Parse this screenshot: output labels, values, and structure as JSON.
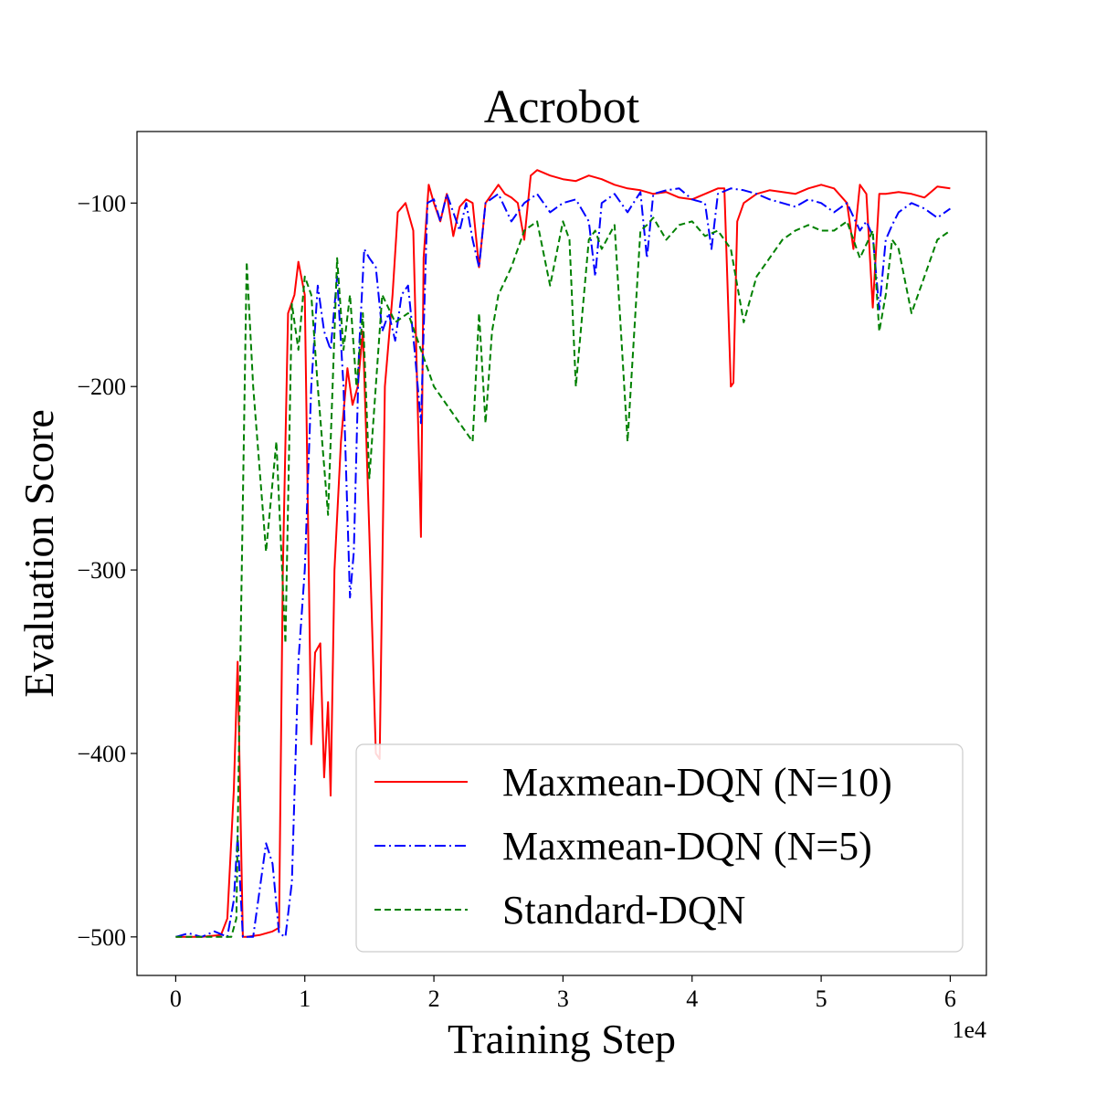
{
  "chart_data": {
    "type": "line",
    "title": "Acrobot",
    "xlabel": "Training Step",
    "ylabel": "Evaluation Score",
    "x_offset_label": "1e4",
    "xlim": [
      -0.3,
      6.28
    ],
    "ylim": [
      -521,
      -61
    ],
    "xticks": [
      0,
      1,
      2,
      3,
      4,
      5,
      6
    ],
    "xtick_labels": [
      "0",
      "1",
      "2",
      "3",
      "4",
      "5",
      "6"
    ],
    "yticks": [
      -500,
      -400,
      -300,
      -200,
      -100
    ],
    "ytick_labels": [
      "−500",
      "−400",
      "−300",
      "−200",
      "−100"
    ],
    "grid": false,
    "legend_position": "lower-right",
    "series": [
      {
        "name": "Maxmean-DQN (N=10)",
        "color": "#ff0000",
        "dash": "solid",
        "x": [
          0,
          0.2,
          0.35,
          0.4,
          0.45,
          0.48,
          0.52,
          0.55,
          0.65,
          0.75,
          0.8,
          0.83,
          0.87,
          0.92,
          0.95,
          1.0,
          1.05,
          1.08,
          1.12,
          1.15,
          1.18,
          1.2,
          1.23,
          1.28,
          1.33,
          1.37,
          1.41,
          1.45,
          1.5,
          1.55,
          1.58,
          1.62,
          1.68,
          1.72,
          1.78,
          1.84,
          1.9,
          1.92,
          1.96,
          2.0,
          2.05,
          2.1,
          2.15,
          2.2,
          2.25,
          2.3,
          2.35,
          2.4,
          2.45,
          2.5,
          2.55,
          2.6,
          2.65,
          2.7,
          2.75,
          2.8,
          2.9,
          3.0,
          3.1,
          3.2,
          3.3,
          3.4,
          3.5,
          3.6,
          3.7,
          3.8,
          3.9,
          4.0,
          4.1,
          4.2,
          4.25,
          4.3,
          4.32,
          4.35,
          4.4,
          4.5,
          4.6,
          4.7,
          4.8,
          4.9,
          5.0,
          5.1,
          5.2,
          5.25,
          5.3,
          5.35,
          5.4,
          5.45,
          5.5,
          5.6,
          5.7,
          5.8,
          5.9,
          6.0
        ],
        "y": [
          -500,
          -500,
          -499,
          -490,
          -420,
          -350,
          -500,
          -500,
          -499,
          -497,
          -495,
          -300,
          -160,
          -150,
          -132,
          -150,
          -395,
          -345,
          -340,
          -413,
          -372,
          -423,
          -300,
          -230,
          -190,
          -210,
          -200,
          -170,
          -280,
          -400,
          -403,
          -200,
          -150,
          -105,
          -100,
          -115,
          -282,
          -130,
          -90,
          -100,
          -110,
          -95,
          -118,
          -102,
          -98,
          -100,
          -135,
          -100,
          -95,
          -90,
          -95,
          -97,
          -100,
          -120,
          -85,
          -82,
          -85,
          -87,
          -88,
          -85,
          -87,
          -90,
          -92,
          -93,
          -95,
          -94,
          -97,
          -98,
          -95,
          -92,
          -92,
          -200,
          -198,
          -110,
          -100,
          -95,
          -93,
          -94,
          -95,
          -92,
          -90,
          -92,
          -100,
          -125,
          -90,
          -95,
          -157,
          -95,
          -95,
          -94,
          -95,
          -97,
          -91,
          -92
        ]
      },
      {
        "name": "Maxmean-DQN (N=5)",
        "color": "#0000ff",
        "dash": "dashdot",
        "x": [
          0,
          0.1,
          0.2,
          0.3,
          0.4,
          0.45,
          0.48,
          0.52,
          0.6,
          0.7,
          0.75,
          0.8,
          0.85,
          0.9,
          0.95,
          1.0,
          1.05,
          1.1,
          1.15,
          1.2,
          1.25,
          1.3,
          1.35,
          1.38,
          1.42,
          1.46,
          1.5,
          1.55,
          1.6,
          1.65,
          1.7,
          1.75,
          1.8,
          1.85,
          1.9,
          1.95,
          2.0,
          2.05,
          2.1,
          2.15,
          2.2,
          2.25,
          2.3,
          2.35,
          2.4,
          2.5,
          2.6,
          2.7,
          2.8,
          2.9,
          3.0,
          3.1,
          3.2,
          3.25,
          3.3,
          3.4,
          3.5,
          3.6,
          3.65,
          3.7,
          3.8,
          3.9,
          4.0,
          4.1,
          4.15,
          4.2,
          4.3,
          4.4,
          4.5,
          4.6,
          4.7,
          4.8,
          4.9,
          5.0,
          5.1,
          5.2,
          5.3,
          5.35,
          5.4,
          5.45,
          5.5,
          5.55,
          5.6,
          5.7,
          5.8,
          5.9,
          6.0
        ],
        "y": [
          -500,
          -498,
          -500,
          -497,
          -500,
          -480,
          -445,
          -500,
          -500,
          -449,
          -460,
          -498,
          -500,
          -470,
          -350,
          -300,
          -200,
          -145,
          -170,
          -180,
          -140,
          -200,
          -315,
          -290,
          -180,
          -125,
          -130,
          -135,
          -170,
          -160,
          -175,
          -150,
          -145,
          -180,
          -220,
          -100,
          -98,
          -110,
          -95,
          -105,
          -115,
          -100,
          -120,
          -135,
          -100,
          -95,
          -110,
          -100,
          -95,
          -105,
          -100,
          -98,
          -110,
          -140,
          -100,
          -95,
          -105,
          -94,
          -130,
          -95,
          -93,
          -92,
          -98,
          -100,
          -125,
          -95,
          -92,
          -93,
          -95,
          -98,
          -100,
          -102,
          -98,
          -100,
          -105,
          -100,
          -115,
          -110,
          -118,
          -158,
          -120,
          -112,
          -105,
          -100,
          -103,
          -108,
          -103
        ]
      },
      {
        "name": "Standard-DQN",
        "color": "#008000",
        "dash": "dashed",
        "x": [
          0,
          0.3,
          0.43,
          0.47,
          0.5,
          0.55,
          0.6,
          0.7,
          0.78,
          0.85,
          0.9,
          0.95,
          1.0,
          1.05,
          1.1,
          1.18,
          1.25,
          1.3,
          1.35,
          1.4,
          1.45,
          1.5,
          1.6,
          1.7,
          1.8,
          1.9,
          2.0,
          2.1,
          2.2,
          2.3,
          2.35,
          2.4,
          2.45,
          2.5,
          2.6,
          2.7,
          2.8,
          2.9,
          3.0,
          3.05,
          3.1,
          3.2,
          3.25,
          3.3,
          3.4,
          3.5,
          3.6,
          3.65,
          3.7,
          3.8,
          3.9,
          4.0,
          4.1,
          4.2,
          4.3,
          4.4,
          4.5,
          4.6,
          4.7,
          4.8,
          4.9,
          5.0,
          5.1,
          5.2,
          5.3,
          5.4,
          5.45,
          5.5,
          5.55,
          5.6,
          5.7,
          5.8,
          5.9,
          6.0
        ],
        "y": [
          -500,
          -500,
          -500,
          -490,
          -350,
          -132,
          -200,
          -290,
          -230,
          -340,
          -155,
          -180,
          -140,
          -150,
          -200,
          -270,
          -130,
          -180,
          -150,
          -200,
          -160,
          -250,
          -150,
          -165,
          -160,
          -180,
          -200,
          -210,
          -220,
          -230,
          -160,
          -220,
          -170,
          -150,
          -135,
          -115,
          -110,
          -145,
          -110,
          -120,
          -200,
          -120,
          -115,
          -125,
          -112,
          -230,
          -115,
          -112,
          -108,
          -120,
          -112,
          -110,
          -118,
          -115,
          -125,
          -165,
          -140,
          -130,
          -120,
          -115,
          -112,
          -115,
          -115,
          -110,
          -130,
          -115,
          -170,
          -150,
          -120,
          -125,
          -160,
          -140,
          -120,
          -115
        ]
      }
    ]
  }
}
